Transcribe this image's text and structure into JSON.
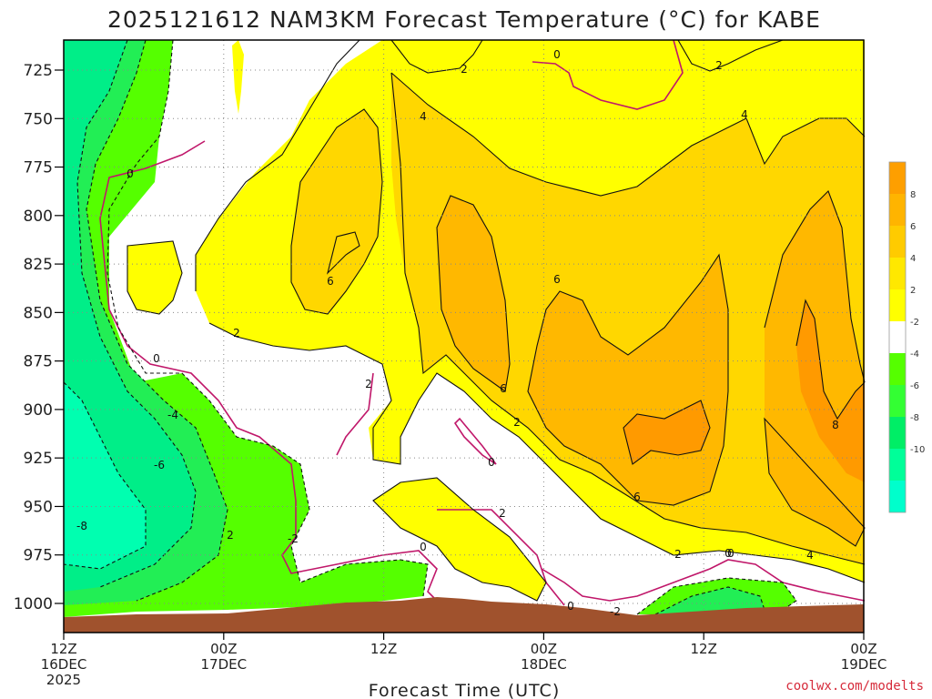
{
  "title": "2025121612 NAM3KM Forecast Temperature (°C) for KABE",
  "credit": "coolwx.com/modelts",
  "chart_data": {
    "type": "heatmap",
    "title": "2025121612 NAM3KM Forecast Temperature (°C) for KABE",
    "xlabel": "Forecast Time (UTC)",
    "ylabel": "",
    "y_ticks": [
      725,
      750,
      775,
      800,
      825,
      850,
      875,
      900,
      925,
      950,
      975,
      1000
    ],
    "ylim": [
      1015,
      710
    ],
    "x_ticks": [
      {
        "hour": 0,
        "line1": "12Z",
        "line2": "16DEC",
        "line3": "2025"
      },
      {
        "hour": 12,
        "line1": "00Z",
        "line2": "17DEC",
        "line3": ""
      },
      {
        "hour": 24,
        "line1": "12Z",
        "line2": "",
        "line3": ""
      },
      {
        "hour": 36,
        "line1": "00Z",
        "line2": "18DEC",
        "line3": ""
      },
      {
        "hour": 48,
        "line1": "12Z",
        "line2": "",
        "line3": ""
      },
      {
        "hour": 60,
        "line1": "00Z",
        "line2": "19DEC",
        "line3": ""
      }
    ],
    "xlim": [
      0,
      60
    ],
    "colorbar": {
      "ticks": [
        "8",
        "6",
        "4",
        "2",
        "-2",
        "-4",
        "-6",
        "-8",
        "-10"
      ],
      "colors": [
        "#fe9f00",
        "#ffb400",
        "#ffcb00",
        "#ffe800",
        "#ffff00",
        "#ffffff",
        "#55ff00",
        "#33ff33",
        "#00ee66",
        "#00ff99",
        "#00ffcc"
      ]
    },
    "contour_labels": [
      "2",
      "4",
      "2",
      "0",
      "2",
      "4",
      "0",
      "6",
      "2",
      "0",
      "2",
      "6",
      "6",
      "2",
      "0",
      "0",
      "4",
      "6",
      "8",
      "-4",
      "-6",
      "-8",
      "-2",
      "0",
      "2",
      "0",
      "-2",
      "2",
      "0"
    ],
    "regions": {
      "ground_color": "#a0522d",
      "band_colors": {
        "le_m8": "#00ffcc",
        "m6": "#00ee88",
        "m4": "#22ee55",
        "m2": "#55ff00",
        "zero": "#ffffff",
        "p2": "#ffff00",
        "p4": "#ffd700",
        "p6": "#ffb800",
        "p8": "#ff9a00"
      }
    }
  }
}
